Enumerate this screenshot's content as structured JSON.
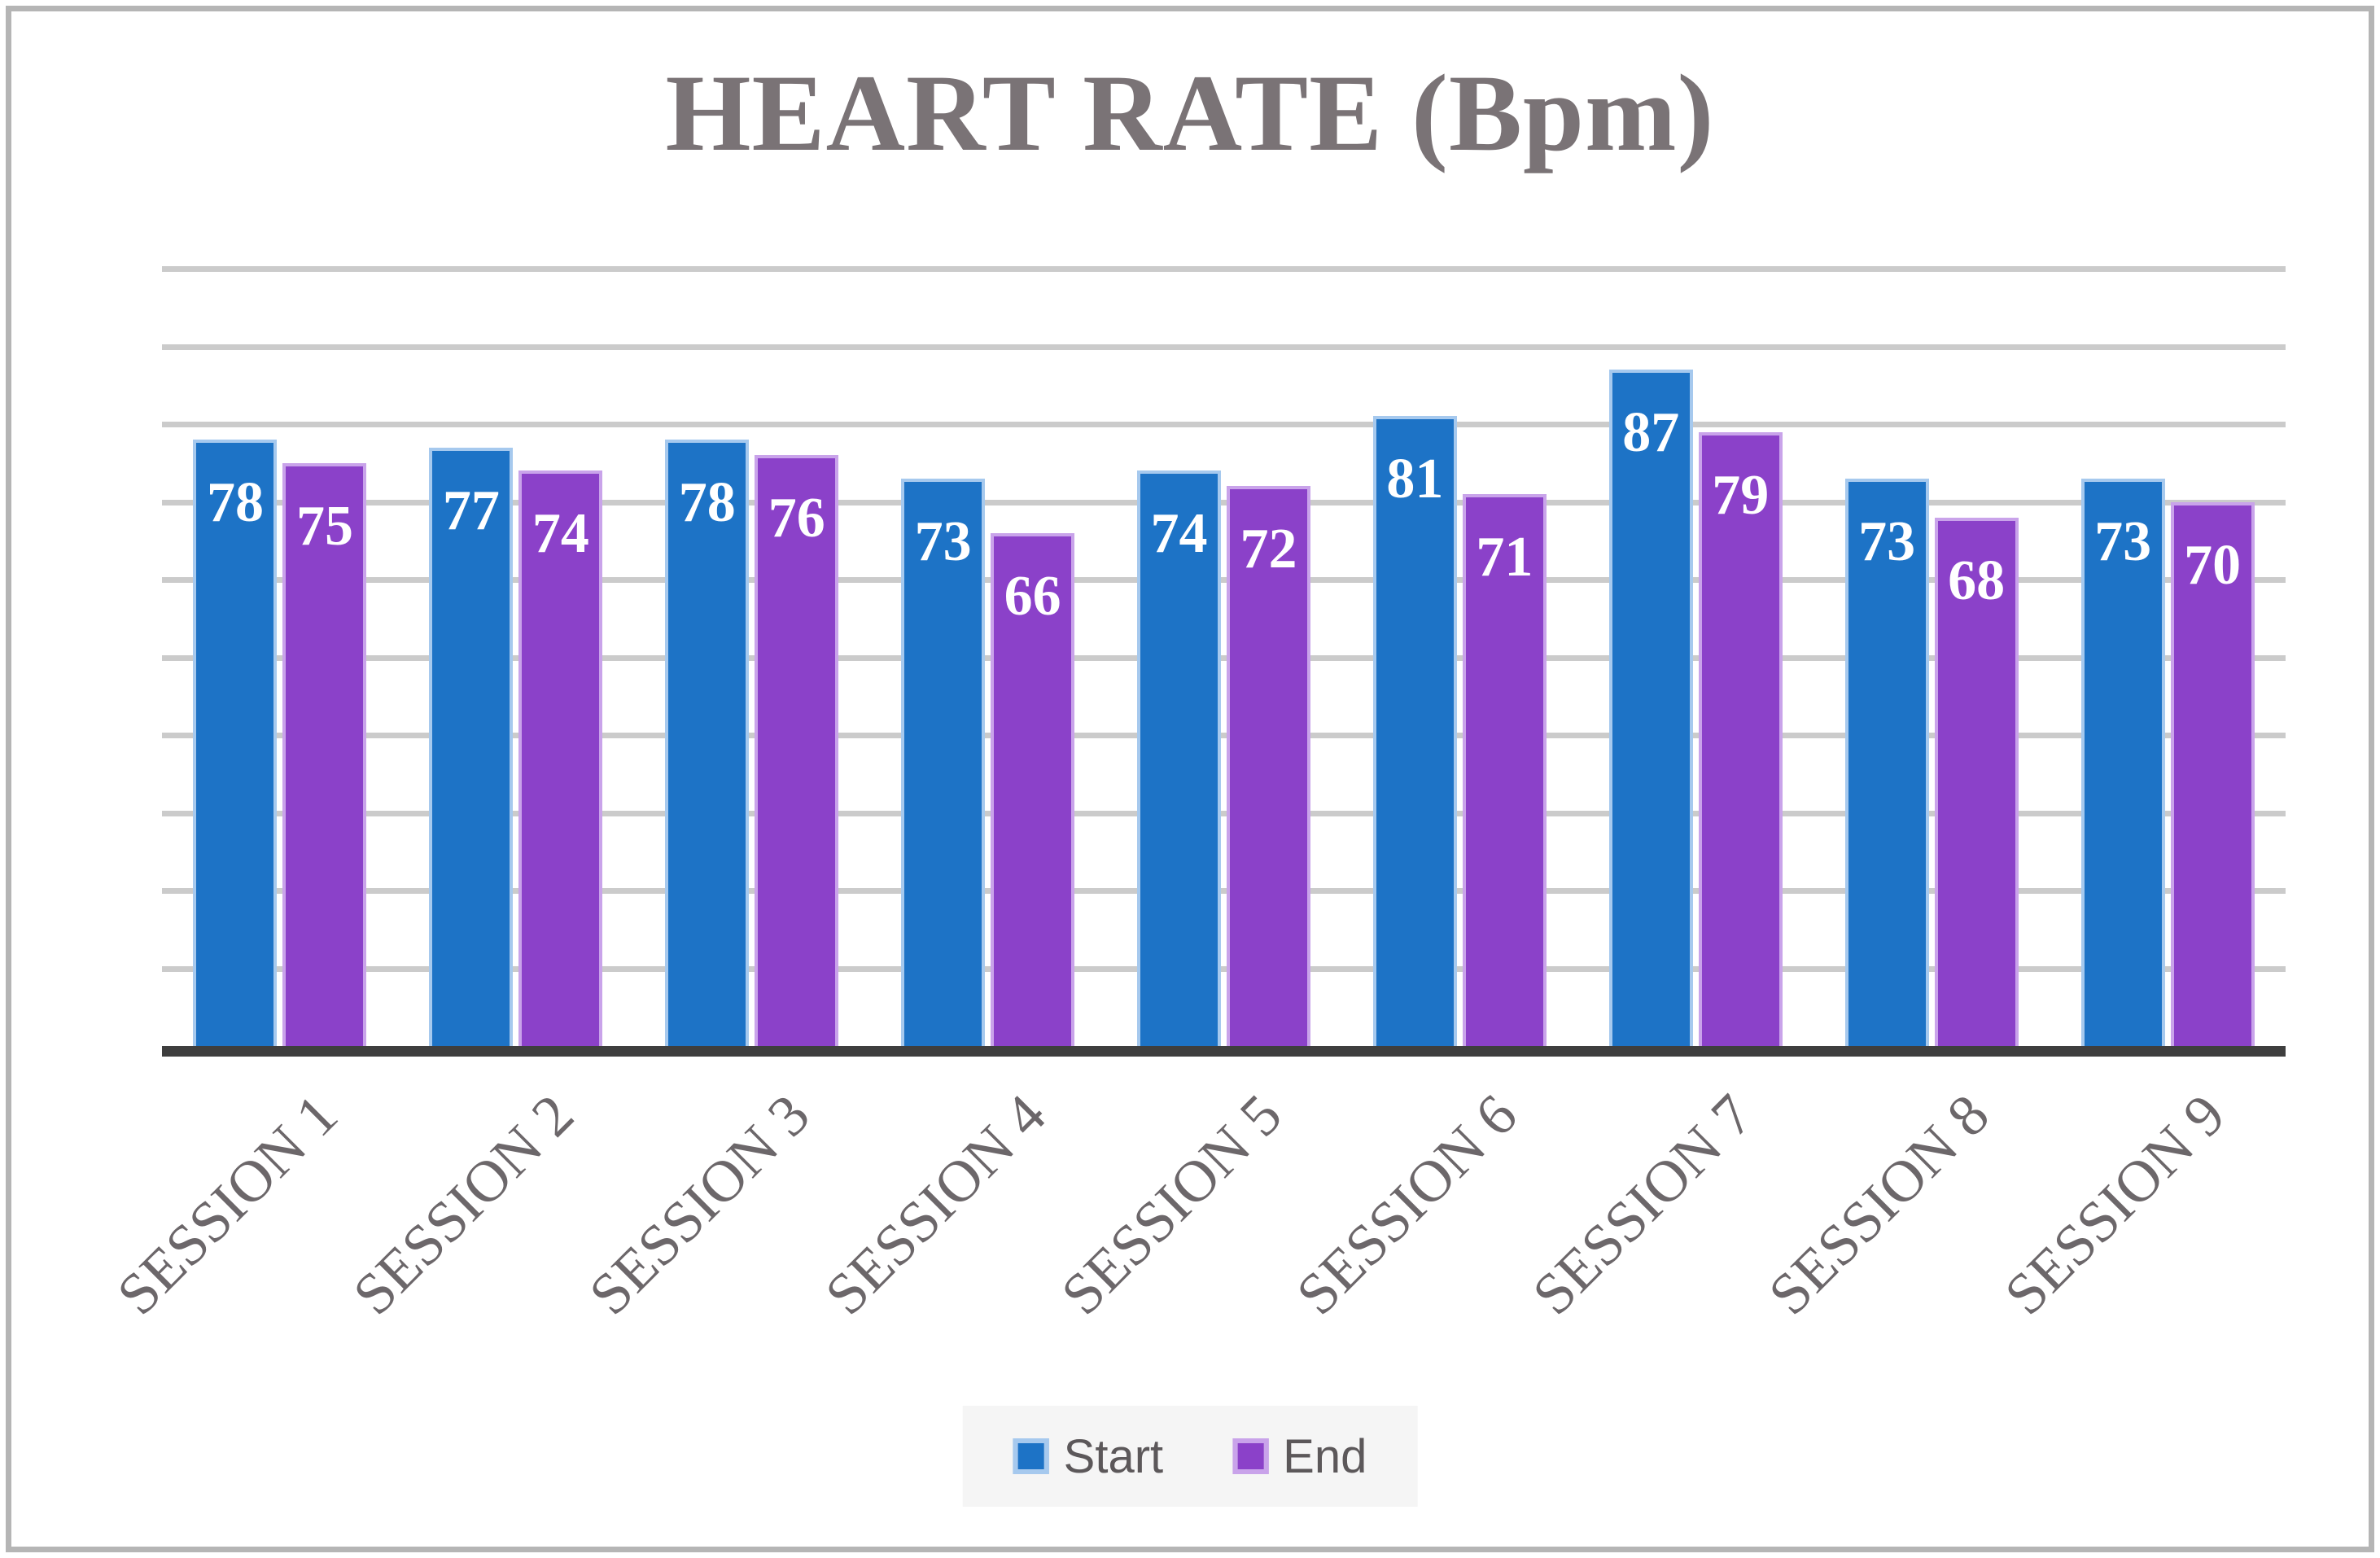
{
  "page": {
    "background": "#ffffff",
    "border_color": "#b5b5b5"
  },
  "chart_data": {
    "type": "bar",
    "title": "HEART RATE (Bpm)",
    "categories": [
      "SESSION 1",
      "SESSION 2",
      "SESSION 3",
      "SESSION 4",
      "SESSION 5",
      "SESSION 6",
      "SESSION 7",
      "SESSION 8",
      "SESSION 9"
    ],
    "series": [
      {
        "name": "Start",
        "color": "#1d73c6",
        "border_color": "#a6c9ee",
        "values": [
          78,
          77,
          78,
          73,
          74,
          81,
          87,
          73,
          73
        ]
      },
      {
        "name": "End",
        "color": "#8b41c9",
        "border_color": "#c9a3ea",
        "values": [
          75,
          74,
          76,
          66,
          72,
          71,
          79,
          68,
          70
        ]
      }
    ],
    "ylim": [
      0,
      100
    ],
    "gridline_step": 10,
    "grid": true,
    "y_axis_labels_visible": false,
    "x_label_rotation_deg": 45,
    "bar_label_placement": "inside-end",
    "bar_label_color": "#ffffff",
    "legend_position": "bottom"
  },
  "styles": {
    "title_color": "#7a7376",
    "axis_line_color": "#3e3e3e",
    "gridline_color": "#cbcbcb",
    "category_label_color": "#6c676a",
    "legend_text_color": "#5c585a",
    "legend_bg": "#f5f5f5"
  }
}
